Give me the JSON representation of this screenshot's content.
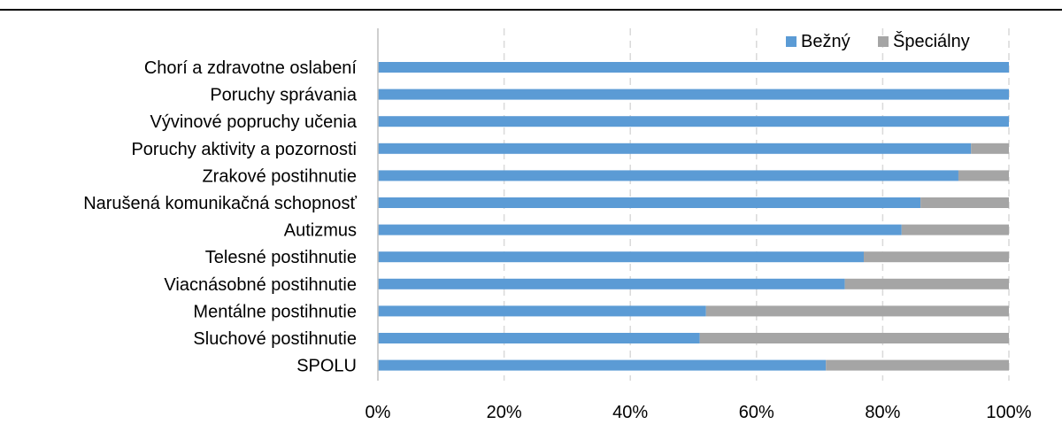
{
  "chart_data": {
    "type": "bar",
    "orientation": "horizontal",
    "stacked": "percent",
    "categories": [
      "Chorí a zdravotne oslabení",
      "Poruchy správania",
      "Vývinové popruchy učenia",
      "Poruchy aktivity a pozornosti",
      "Zrakové postihnutie",
      "Narušená komunikačná schopnosť",
      "Autizmus",
      "Telesné postihnutie",
      "Viacnásobné postihnutie",
      "Mentálne postihnutie",
      "Sluchové postihnutie",
      "SPOLU"
    ],
    "series": [
      {
        "name": "Bežný",
        "color": "#5b9bd5",
        "values": [
          100,
          100,
          100,
          94,
          92,
          86,
          83,
          77,
          74,
          52,
          51,
          71
        ]
      },
      {
        "name": "Špeciálny",
        "color": "#a5a5a5",
        "values": [
          0,
          0,
          0,
          6,
          8,
          14,
          17,
          23,
          26,
          48,
          49,
          29
        ]
      }
    ],
    "xlim": [
      0,
      100
    ],
    "xticks": [
      "0%",
      "20%",
      "40%",
      "60%",
      "80%",
      "100%"
    ],
    "grid": "vertical dashed",
    "legend": "top-right"
  }
}
